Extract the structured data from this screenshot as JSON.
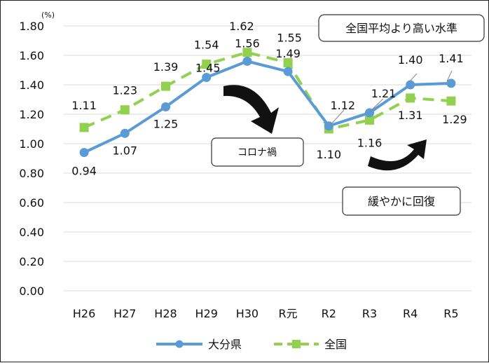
{
  "chart_data": {
    "type": "line",
    "unit": "(%)",
    "categories": [
      "H26",
      "H27",
      "H28",
      "H29",
      "H30",
      "R元",
      "R2",
      "R3",
      "R4",
      "R5"
    ],
    "yticks": [
      "0.00",
      "0.20",
      "0.40",
      "0.60",
      "0.80",
      "1.00",
      "1.20",
      "1.40",
      "1.60",
      "1.80"
    ],
    "ylim": [
      0,
      1.8
    ],
    "grid": true,
    "legend_position": "bottom",
    "series": [
      {
        "name": "大分県",
        "color": "#5b9bd5",
        "marker": "circle",
        "values": [
          0.94,
          1.07,
          1.25,
          1.45,
          1.56,
          1.49,
          1.12,
          1.21,
          1.4,
          1.41
        ],
        "labels": [
          "0.94",
          "1.07",
          "1.25",
          "1.45",
          "1.56",
          "1.49",
          "1.12",
          "1.21",
          "1.40",
          "1.41"
        ]
      },
      {
        "name": "全国",
        "color": "#92d050",
        "marker": "square",
        "values": [
          1.11,
          1.23,
          1.39,
          1.54,
          1.62,
          1.55,
          1.1,
          1.16,
          1.31,
          1.29
        ],
        "labels": [
          "1.11",
          "1.23",
          "1.39",
          "1.54",
          "1.62",
          "1.55",
          "1.10",
          "1.16",
          "1.31",
          "1.29"
        ]
      }
    ],
    "annotations": {
      "above_national": "全国平均より高い水準",
      "covid": "コロナ禍",
      "recovery": "緩やかに回復"
    }
  }
}
